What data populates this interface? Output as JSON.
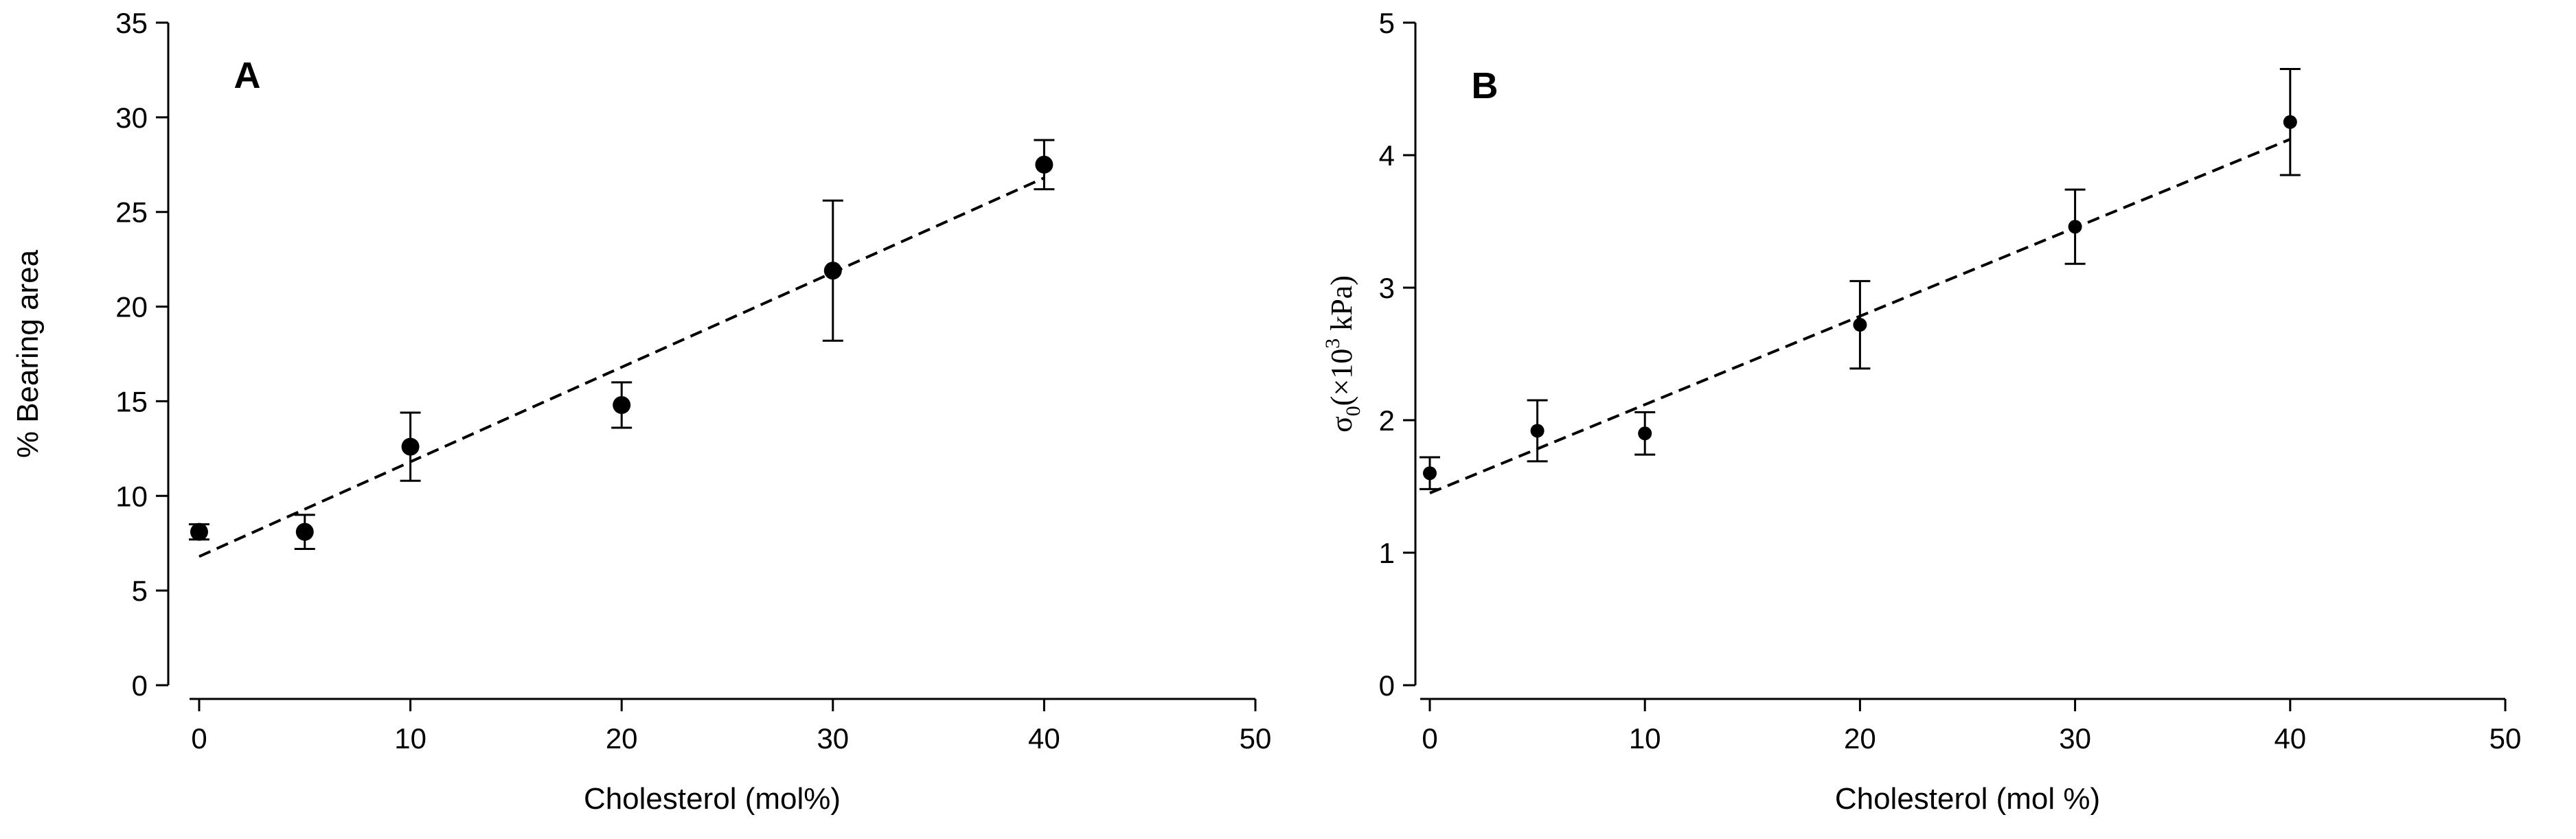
{
  "chart_data": [
    {
      "panel": "A",
      "type": "scatter",
      "xlabel": "Cholesterol (mol%)",
      "ylabel": "% Bearing area",
      "xlim": [
        0,
        50
      ],
      "ylim": [
        0,
        35
      ],
      "xticks": [
        0,
        10,
        20,
        30,
        40,
        50
      ],
      "yticks": [
        0,
        5,
        10,
        15,
        20,
        25,
        30,
        35
      ],
      "x": [
        0,
        5,
        10,
        20,
        30,
        40
      ],
      "y": [
        8.1,
        8.1,
        12.6,
        14.8,
        21.9,
        27.5
      ],
      "yerr": [
        0.4,
        0.9,
        1.8,
        1.2,
        3.7,
        1.3
      ],
      "fit_line": {
        "style": "dashed",
        "x": [
          0,
          40
        ],
        "y": [
          6.8,
          26.8
        ]
      },
      "grid": false,
      "legend": "none"
    },
    {
      "panel": "B",
      "type": "scatter",
      "xlabel": "Cholesterol (mol %)",
      "ylabel": "σ0(×10^3 kPa)",
      "ylabel_parts": {
        "symbol": "σ",
        "sub": "0",
        "open": "(×10",
        "sup": "3",
        "close": " kPa)"
      },
      "xlim": [
        0,
        50
      ],
      "ylim": [
        0,
        5
      ],
      "xticks": [
        0,
        10,
        20,
        30,
        40,
        50
      ],
      "yticks": [
        0,
        1,
        2,
        3,
        4,
        5
      ],
      "x": [
        0,
        5,
        10,
        20,
        30,
        40
      ],
      "y": [
        1.6,
        1.92,
        1.9,
        2.72,
        3.46,
        4.25
      ],
      "yerr": [
        0.12,
        0.23,
        0.16,
        0.33,
        0.28,
        0.4
      ],
      "fit_line": {
        "style": "dashed",
        "x": [
          0,
          40
        ],
        "y": [
          1.45,
          4.12
        ]
      },
      "grid": false,
      "legend": "none"
    }
  ]
}
